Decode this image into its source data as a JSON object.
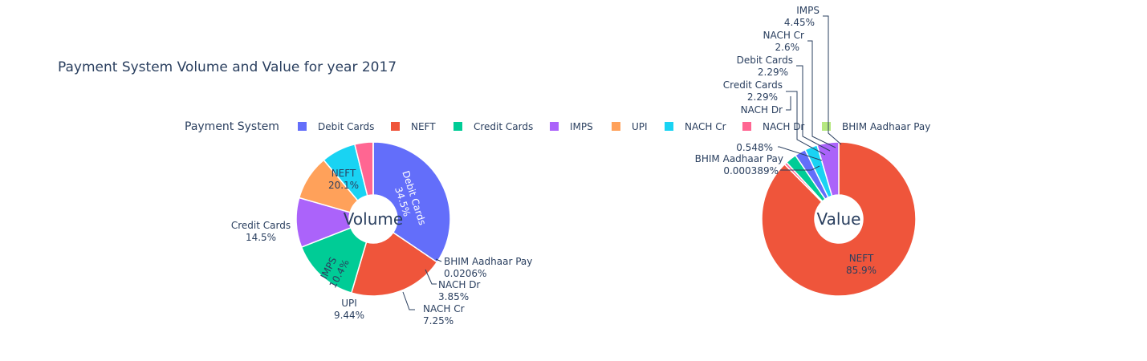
{
  "title": "Payment System Volume and Value for year 2017",
  "legend_title": "Payment System",
  "colors": {
    "Debit Cards": "#636efa",
    "NEFT": "#ef553b",
    "Credit Cards": "#00cc96",
    "IMPS": "#ab63fa",
    "UPI": "#ffa15a",
    "NACH Cr": "#19d3f3",
    "NACH Dr": "#ff6692",
    "BHIM Aadhaar Pay": "#b6e880"
  },
  "legend": [
    "Debit Cards",
    "NEFT",
    "Credit Cards",
    "IMPS",
    "UPI",
    "NACH Cr",
    "NACH Dr",
    "BHIM Aadhaar Pay"
  ],
  "chart_data": [
    {
      "type": "pie",
      "center_label": "Volume",
      "slices": [
        {
          "label": "Debit Cards",
          "value": 34.5,
          "text": "34.5%"
        },
        {
          "label": "NEFT",
          "value": 20.1,
          "text": "20.1%"
        },
        {
          "label": "Credit Cards",
          "value": 14.5,
          "text": "14.5%"
        },
        {
          "label": "IMPS",
          "value": 10.4,
          "text": "10.4%"
        },
        {
          "label": "UPI",
          "value": 9.44,
          "text": "9.44%"
        },
        {
          "label": "NACH Cr",
          "value": 7.25,
          "text": "7.25%"
        },
        {
          "label": "NACH Dr",
          "value": 3.85,
          "text": "3.85%"
        },
        {
          "label": "BHIM Aadhaar Pay",
          "value": 0.0206,
          "text": "0.0206%"
        }
      ]
    },
    {
      "type": "pie",
      "center_label": "Value",
      "slices": [
        {
          "label": "NEFT",
          "value": 85.9,
          "text": "85.9%"
        },
        {
          "label": "BHIM Aadhaar Pay",
          "value": 0.000389,
          "text": "0.000389%"
        },
        {
          "label": "NACH Dr",
          "value": 0.548,
          "text": "0.548%"
        },
        {
          "label": "Credit Cards",
          "value": 2.29,
          "text": "2.29%"
        },
        {
          "label": "Debit Cards",
          "value": 2.29,
          "text": "2.29%"
        },
        {
          "label": "NACH Cr",
          "value": 2.6,
          "text": "2.6%"
        },
        {
          "label": "IMPS",
          "value": 4.45,
          "text": "4.45%"
        }
      ]
    }
  ]
}
